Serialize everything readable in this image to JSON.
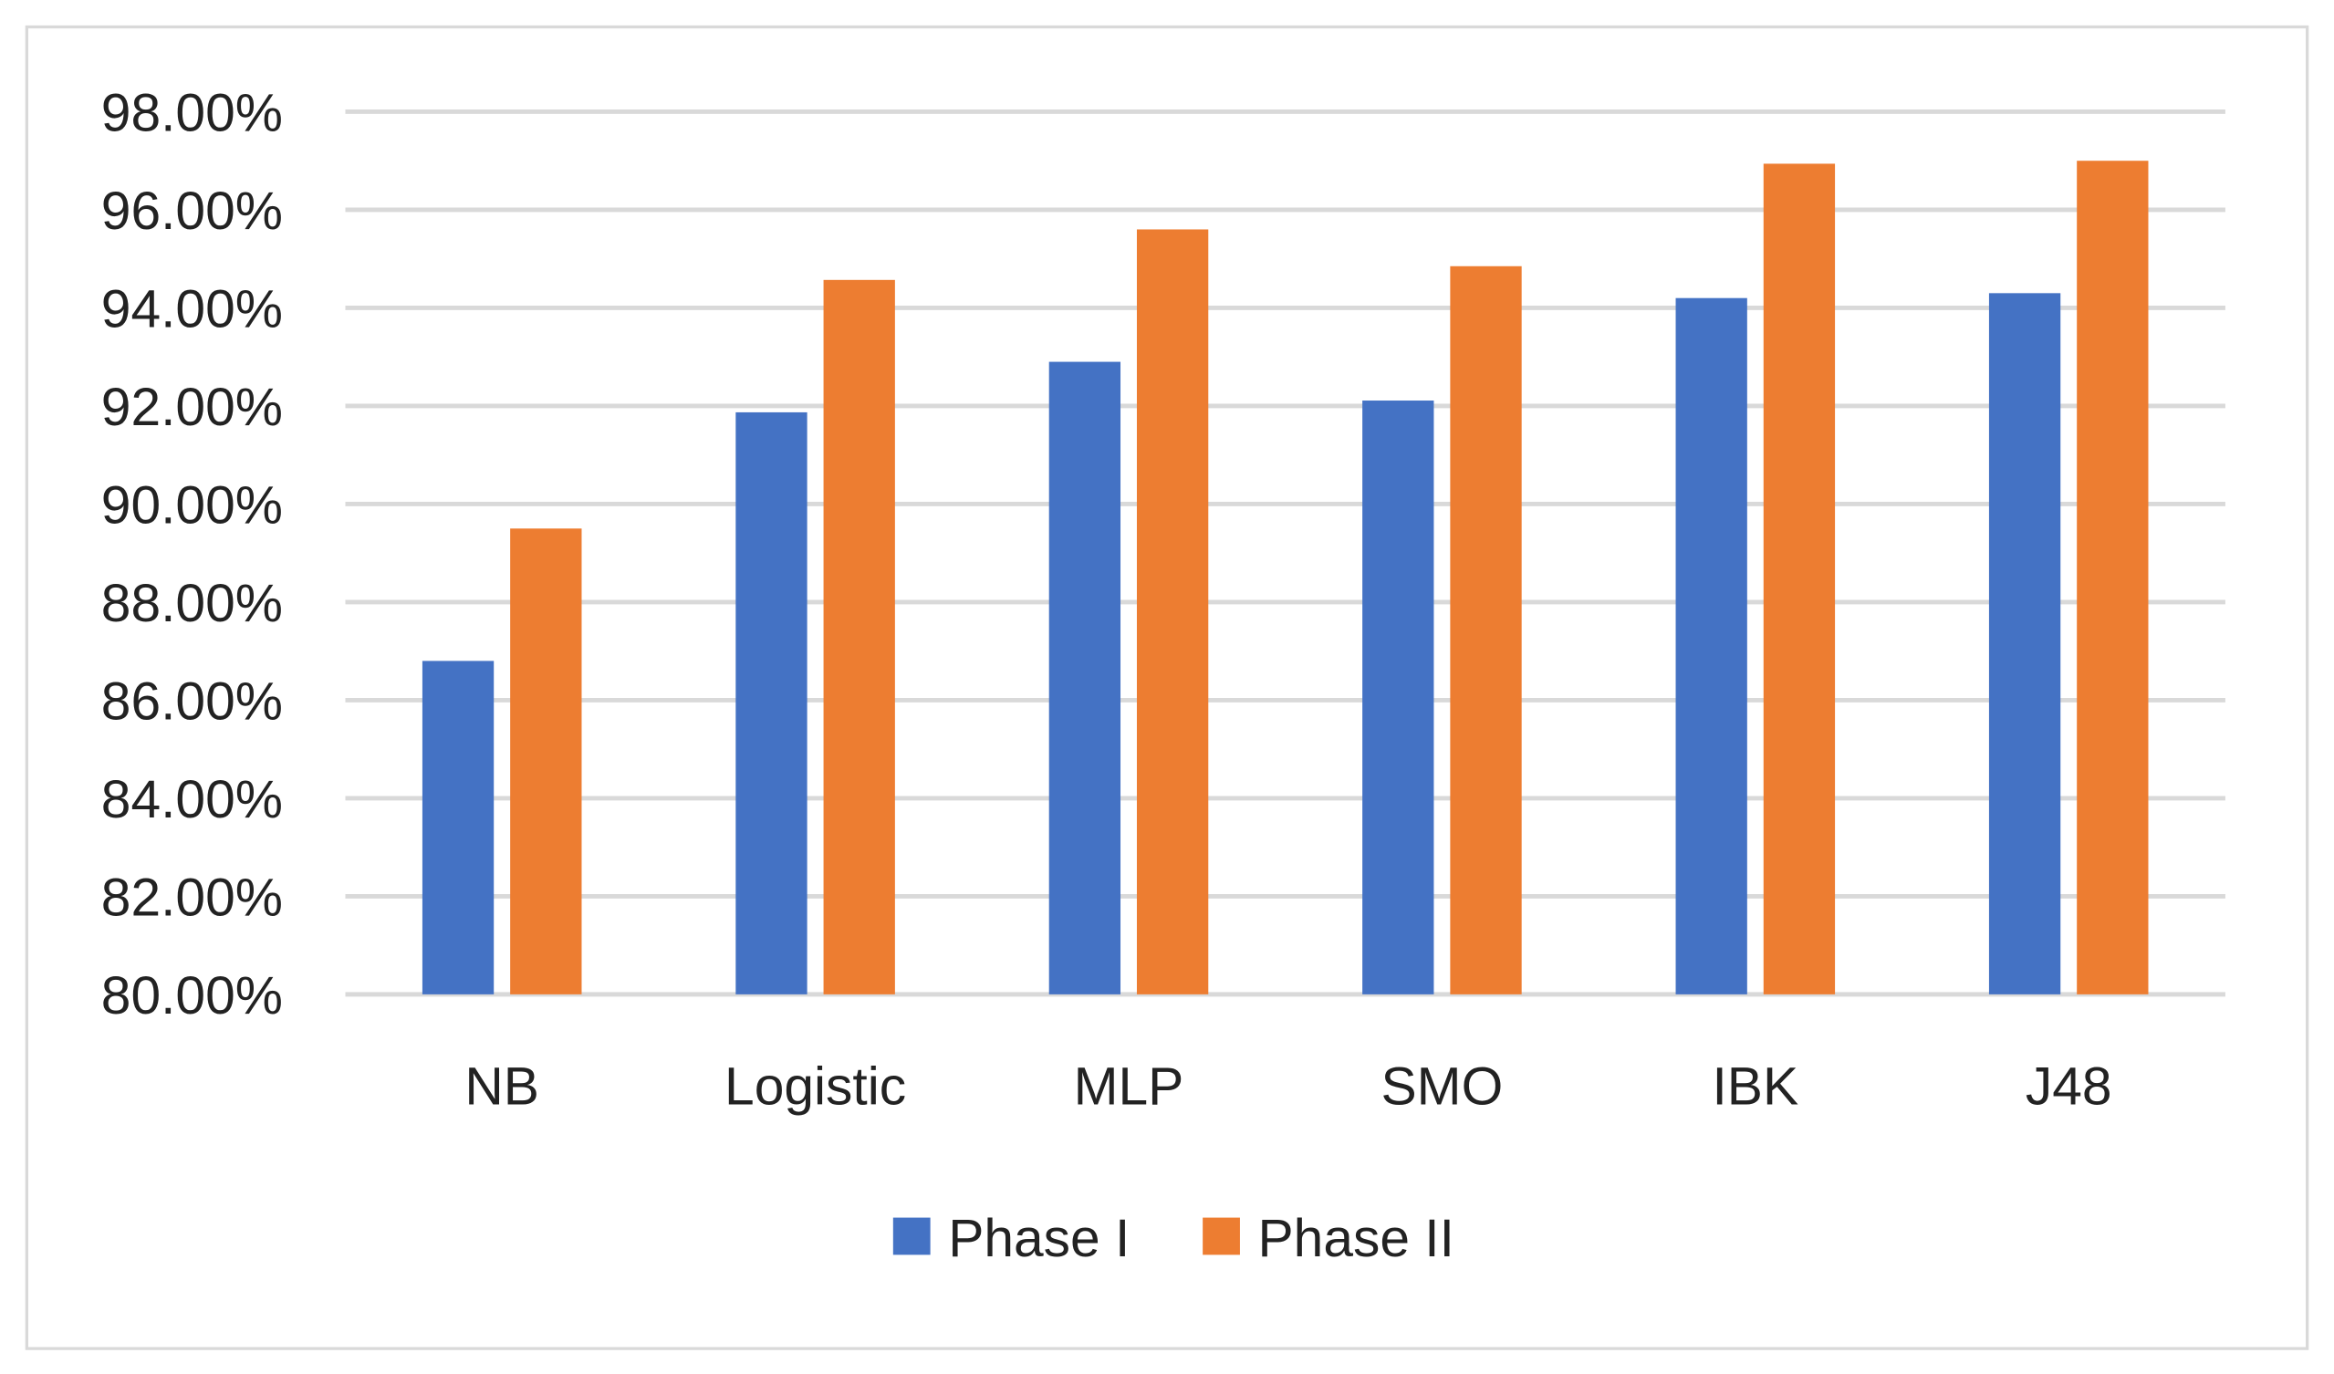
{
  "chart_data": {
    "type": "bar",
    "title": "",
    "xlabel": "",
    "ylabel": "",
    "categories": [
      "NB",
      "Logistic",
      "MLP",
      "SMO",
      "IBK",
      "J48"
    ],
    "series": [
      {
        "name": "Phase I",
        "color": "#4472C4",
        "values": [
          86.8,
          91.87,
          92.9,
          92.11,
          94.2,
          94.3
        ]
      },
      {
        "name": "Phase II",
        "color": "#ED7D31",
        "values": [
          89.5,
          94.57,
          95.6,
          94.85,
          96.94,
          97.0
        ]
      }
    ],
    "ylim": [
      80,
      98
    ],
    "yticks": [
      "80.00%",
      "82.00%",
      "84.00%",
      "86.00%",
      "88.00%",
      "90.00%",
      "92.00%",
      "94.00%",
      "96.00%",
      "98.00%"
    ],
    "grid": true,
    "legend": "bottom"
  }
}
